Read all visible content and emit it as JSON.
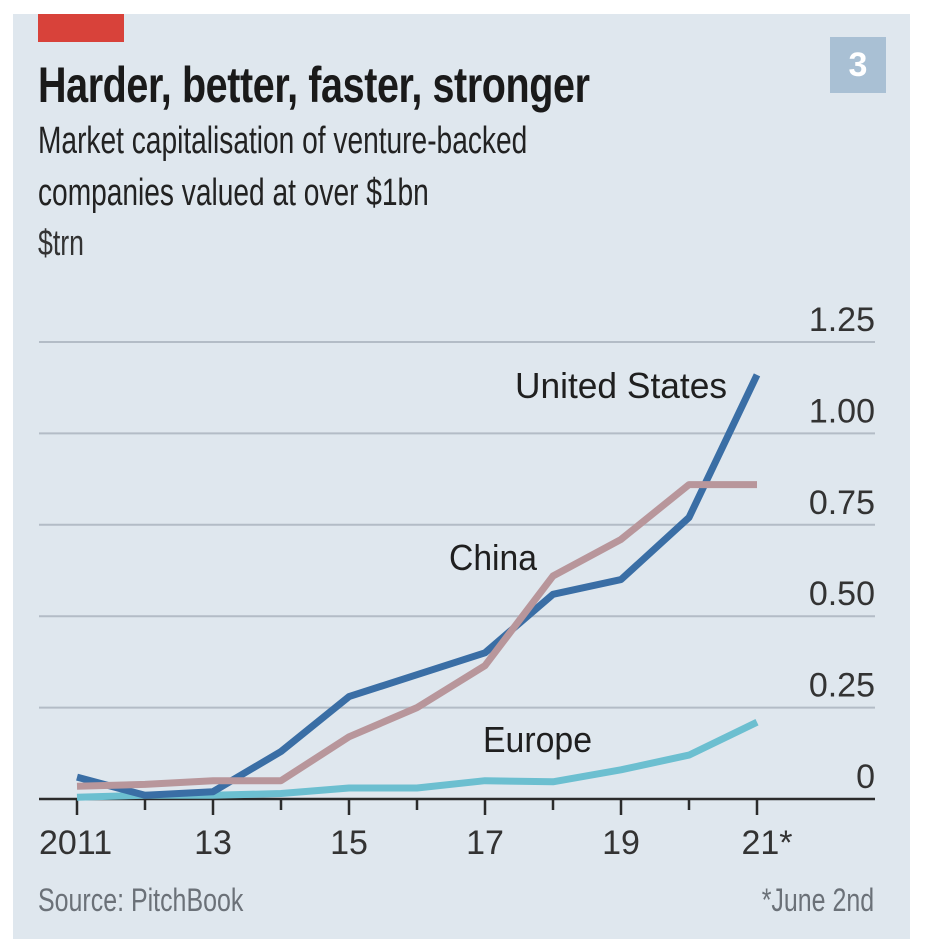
{
  "header": {
    "badge": "3",
    "title": "Harder, better, faster, stronger",
    "subtitle_line1": "Market capitalisation of venture-backed",
    "subtitle_line2": "companies valued at over $1bn",
    "unit": "$trn"
  },
  "footer": {
    "source": "Source: PitchBook",
    "footnote": "*June 2nd"
  },
  "colors": {
    "accent_red": "#d8423a",
    "background": "#dfe7ee",
    "united_states": "#3a6ea5",
    "china": "#b8969b",
    "europe": "#6cbfd0",
    "gridline": "#b3bcc6"
  },
  "chart_data": {
    "type": "line",
    "title": "Harder, better, faster, stronger",
    "subtitle": "Market capitalisation of venture-backed companies valued at over $1bn",
    "xlabel": "",
    "ylabel": "$trn",
    "x": [
      2011,
      2012,
      2013,
      2014,
      2015,
      2016,
      2017,
      2018,
      2019,
      2020,
      2021
    ],
    "x_tick_values": [
      2011,
      2012,
      2013,
      2014,
      2015,
      2016,
      2017,
      2018,
      2019,
      2020,
      2021
    ],
    "x_tick_labels": [
      {
        "value": 2011,
        "label": "2011"
      },
      {
        "value": 2013,
        "label": "13"
      },
      {
        "value": 2015,
        "label": "15"
      },
      {
        "value": 2017,
        "label": "17"
      },
      {
        "value": 2019,
        "label": "19"
      },
      {
        "value": 2021,
        "label": "21*"
      }
    ],
    "y_ticks": [
      {
        "value": 0,
        "label": "0"
      },
      {
        "value": 0.25,
        "label": "0.25"
      },
      {
        "value": 0.5,
        "label": "0.50"
      },
      {
        "value": 0.75,
        "label": "0.75"
      },
      {
        "value": 1.0,
        "label": "1.00"
      },
      {
        "value": 1.25,
        "label": "1.25"
      }
    ],
    "ylim": [
      0,
      1.25
    ],
    "xlim": [
      2011,
      2021
    ],
    "grid": true,
    "y_axis_side": "right",
    "series": [
      {
        "name": "United States",
        "key": "united_states",
        "values": [
          0.06,
          0.01,
          0.02,
          0.13,
          0.28,
          0.34,
          0.4,
          0.56,
          0.6,
          0.77,
          1.16
        ]
      },
      {
        "name": "China",
        "key": "china",
        "values": [
          0.035,
          0.04,
          0.05,
          0.05,
          0.17,
          0.25,
          0.365,
          0.61,
          0.71,
          0.86,
          0.86
        ]
      },
      {
        "name": "Europe",
        "key": "europe",
        "values": [
          0.005,
          0.01,
          0.01,
          0.015,
          0.03,
          0.03,
          0.05,
          0.047,
          0.08,
          0.12,
          0.21
        ]
      }
    ],
    "annotations": [
      {
        "text": "United States",
        "series": "united_states"
      },
      {
        "text": "China",
        "series": "china"
      },
      {
        "text": "Europe",
        "series": "europe"
      }
    ],
    "footnote": "*June 2nd"
  }
}
